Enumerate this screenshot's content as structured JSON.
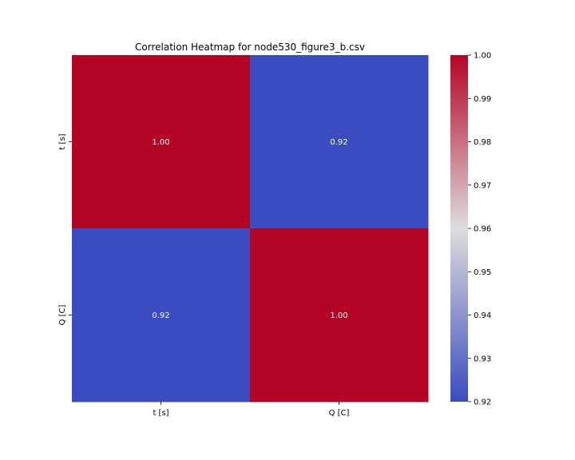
{
  "chart_data": {
    "type": "heatmap",
    "title": "Correlation Heatmap for node530_figure3_b.csv",
    "x_labels": [
      "t [s]",
      "Q [C]"
    ],
    "y_labels": [
      "t [s]",
      "Q [C]"
    ],
    "matrix": [
      [
        1.0,
        0.92
      ],
      [
        0.92,
        1.0
      ]
    ],
    "value_labels": [
      [
        "1.00",
        "0.92"
      ],
      [
        "0.92",
        "1.00"
      ]
    ],
    "colormap": "coolwarm",
    "colorbar": {
      "vmin": 0.92,
      "vmax": 1.0,
      "ticks": [
        0.92,
        0.93,
        0.94,
        0.95,
        0.96,
        0.97,
        0.98,
        0.99,
        1.0
      ],
      "tick_labels": [
        "0.92",
        "0.93",
        "0.94",
        "0.95",
        "0.96",
        "0.97",
        "0.98",
        "0.99",
        "1.00"
      ]
    },
    "colors": {
      "low": "#3b4cc0",
      "mid": "#dddcdc",
      "high": "#b40426",
      "cell_text": "#ffffff"
    }
  }
}
